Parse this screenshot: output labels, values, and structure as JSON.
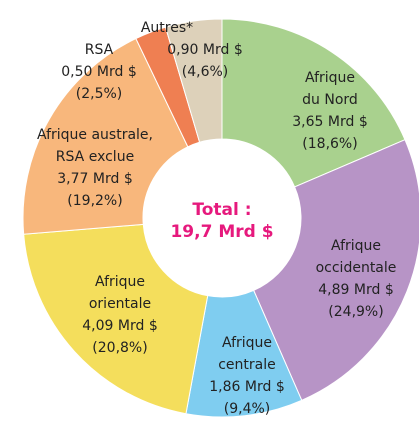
{
  "chart_data": {
    "type": "donut",
    "center_label": [
      "Total :",
      "19,7 Mrd $"
    ],
    "categories": [
      [
        "Afrique",
        "du Nord"
      ],
      [
        "Afrique",
        "occidentale"
      ],
      [
        "Afrique",
        "centrale"
      ],
      [
        "Afrique",
        "orientale"
      ],
      [
        "Afrique australe,",
        "RSA exclue"
      ],
      [
        "RSA"
      ],
      [
        "Autres*"
      ]
    ],
    "values": [
      3.65,
      4.89,
      1.86,
      4.09,
      3.77,
      0.5,
      0.9
    ],
    "value_labels": [
      "3,65 Mrd $",
      "4,89 Mrd $",
      "1,86 Mrd $",
      "4,09 Mrd $",
      "3,77 Mrd $",
      "0,50 Mrd $",
      "0,90 Mrd $"
    ],
    "percents": [
      18.6,
      24.9,
      9.4,
      20.8,
      19.2,
      2.5,
      4.6
    ],
    "percent_labels": [
      "(18,6%)",
      "(24,9%)",
      "(9,4%)",
      "(20,8%)",
      "(19,2%)",
      "(2,5%)",
      "(4,6%)"
    ],
    "colors": [
      "#a9d18e",
      "#b794c6",
      "#7fcdf0",
      "#f4de5c",
      "#f8b77c",
      "#ef7f52",
      "#ddd1ba"
    ]
  }
}
